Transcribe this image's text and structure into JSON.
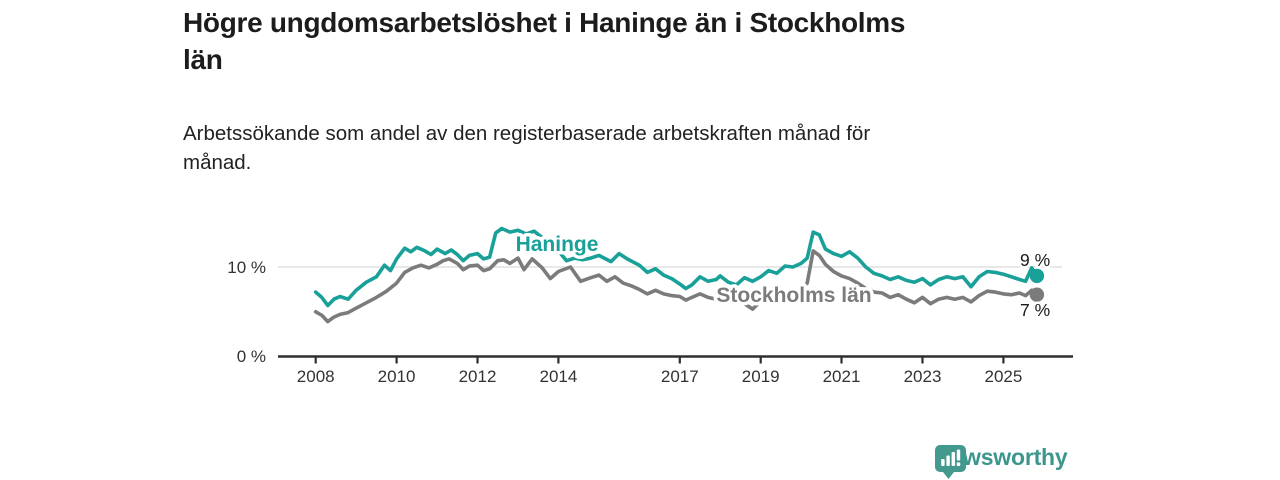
{
  "header": {
    "title_lines": [
      "Högre ungdomsarbetslöshet i Haninge än i Stockholms",
      "län"
    ],
    "subtitle_lines": [
      "Arbetssökande som andel av den registerbaserade arbetskraften månad för",
      "månad."
    ]
  },
  "branding": {
    "logo_text": "Newsworthy",
    "logo_color": "#44998f",
    "logo_icon": "bar-chart-speech-bubble-icon"
  },
  "chart_data": {
    "type": "line",
    "title": "Högre ungdomsarbetslöshet i Haninge än i Stockholms län",
    "subtitle": "Arbetssökande som andel av den registerbaserade arbetskraften månad för månad.",
    "unit": "%",
    "xlim": [
      2007.9,
      2026.1
    ],
    "ylim": [
      0,
      15
    ],
    "x_ticks": [
      2008,
      2010,
      2012,
      2014,
      2017,
      2019,
      2021,
      2023,
      2025
    ],
    "y_ticks": [
      {
        "value": 0,
        "label": "0 %"
      },
      {
        "value": 10,
        "label": "10 %"
      }
    ],
    "gridlines_y": [
      10
    ],
    "grid_color": "#d9d9d9",
    "axis_color": "#2e2e2e",
    "text_color": "#333333",
    "legend_position": "inline-labels",
    "series": [
      {
        "name": "Haninge",
        "color": "#19a099",
        "end_label": "9 %",
        "end_value": 9,
        "points": [
          [
            2008.0,
            7.2
          ],
          [
            2008.15,
            6.6
          ],
          [
            2008.3,
            5.7
          ],
          [
            2008.45,
            6.4
          ],
          [
            2008.6,
            6.7
          ],
          [
            2008.8,
            6.4
          ],
          [
            2009.0,
            7.4
          ],
          [
            2009.25,
            8.3
          ],
          [
            2009.5,
            8.9
          ],
          [
            2009.7,
            10.2
          ],
          [
            2009.85,
            9.6
          ],
          [
            2010.0,
            10.9
          ],
          [
            2010.2,
            12.1
          ],
          [
            2010.35,
            11.7
          ],
          [
            2010.5,
            12.2
          ],
          [
            2010.7,
            11.8
          ],
          [
            2010.85,
            11.4
          ],
          [
            2011.0,
            12.0
          ],
          [
            2011.2,
            11.5
          ],
          [
            2011.35,
            11.9
          ],
          [
            2011.5,
            11.4
          ],
          [
            2011.65,
            10.7
          ],
          [
            2011.8,
            11.3
          ],
          [
            2012.0,
            11.5
          ],
          [
            2012.15,
            10.9
          ],
          [
            2012.3,
            11.1
          ],
          [
            2012.45,
            13.8
          ],
          [
            2012.6,
            14.3
          ],
          [
            2012.8,
            13.9
          ],
          [
            2013.0,
            14.1
          ],
          [
            2013.2,
            13.7
          ],
          [
            2013.4,
            14.0
          ],
          [
            2013.6,
            13.3
          ],
          [
            2013.8,
            12.4
          ],
          [
            2014.0,
            11.8
          ],
          [
            2014.2,
            10.7
          ],
          [
            2014.4,
            11.0
          ],
          [
            2014.6,
            10.8
          ],
          [
            2014.8,
            11.0
          ],
          [
            2015.0,
            11.3
          ],
          [
            2015.3,
            10.6
          ],
          [
            2015.5,
            11.5
          ],
          [
            2015.7,
            10.9
          ],
          [
            2016.0,
            10.2
          ],
          [
            2016.2,
            9.4
          ],
          [
            2016.4,
            9.8
          ],
          [
            2016.6,
            9.1
          ],
          [
            2016.8,
            8.7
          ],
          [
            2017.0,
            8.1
          ],
          [
            2017.15,
            7.6
          ],
          [
            2017.3,
            8.0
          ],
          [
            2017.5,
            8.9
          ],
          [
            2017.7,
            8.4
          ],
          [
            2017.9,
            8.6
          ],
          [
            2018.0,
            9.0
          ],
          [
            2018.2,
            8.3
          ],
          [
            2018.4,
            8.0
          ],
          [
            2018.6,
            8.8
          ],
          [
            2018.8,
            8.4
          ],
          [
            2019.0,
            8.9
          ],
          [
            2019.2,
            9.6
          ],
          [
            2019.4,
            9.3
          ],
          [
            2019.6,
            10.1
          ],
          [
            2019.8,
            10.0
          ],
          [
            2020.0,
            10.4
          ],
          [
            2020.15,
            11.0
          ],
          [
            2020.3,
            13.9
          ],
          [
            2020.45,
            13.6
          ],
          [
            2020.6,
            12.0
          ],
          [
            2020.8,
            11.5
          ],
          [
            2021.0,
            11.2
          ],
          [
            2021.2,
            11.7
          ],
          [
            2021.4,
            11.0
          ],
          [
            2021.6,
            10.0
          ],
          [
            2021.8,
            9.3
          ],
          [
            2022.0,
            9.0
          ],
          [
            2022.2,
            8.6
          ],
          [
            2022.4,
            8.9
          ],
          [
            2022.6,
            8.5
          ],
          [
            2022.8,
            8.3
          ],
          [
            2023.0,
            8.7
          ],
          [
            2023.2,
            8.0
          ],
          [
            2023.4,
            8.6
          ],
          [
            2023.6,
            8.9
          ],
          [
            2023.8,
            8.7
          ],
          [
            2024.0,
            8.9
          ],
          [
            2024.2,
            7.8
          ],
          [
            2024.4,
            8.9
          ],
          [
            2024.6,
            9.5
          ],
          [
            2024.8,
            9.4
          ],
          [
            2025.0,
            9.2
          ],
          [
            2025.2,
            8.9
          ],
          [
            2025.4,
            8.6
          ],
          [
            2025.55,
            8.4
          ],
          [
            2025.7,
            9.9
          ],
          [
            2025.83,
            9.0
          ]
        ]
      },
      {
        "name": "Stockholms län",
        "color": "#7b7b7b",
        "end_label": "7 %",
        "end_value": 7,
        "points": [
          [
            2008.0,
            5.0
          ],
          [
            2008.15,
            4.6
          ],
          [
            2008.3,
            3.9
          ],
          [
            2008.45,
            4.4
          ],
          [
            2008.6,
            4.7
          ],
          [
            2008.8,
            4.9
          ],
          [
            2009.0,
            5.4
          ],
          [
            2009.25,
            6.0
          ],
          [
            2009.5,
            6.6
          ],
          [
            2009.75,
            7.3
          ],
          [
            2010.0,
            8.2
          ],
          [
            2010.2,
            9.4
          ],
          [
            2010.4,
            9.9
          ],
          [
            2010.6,
            10.2
          ],
          [
            2010.8,
            9.9
          ],
          [
            2011.0,
            10.3
          ],
          [
            2011.15,
            10.7
          ],
          [
            2011.3,
            10.9
          ],
          [
            2011.5,
            10.4
          ],
          [
            2011.65,
            9.7
          ],
          [
            2011.8,
            10.1
          ],
          [
            2012.0,
            10.2
          ],
          [
            2012.15,
            9.6
          ],
          [
            2012.3,
            9.8
          ],
          [
            2012.5,
            10.7
          ],
          [
            2012.65,
            10.8
          ],
          [
            2012.8,
            10.4
          ],
          [
            2013.0,
            11.0
          ],
          [
            2013.15,
            9.7
          ],
          [
            2013.35,
            10.9
          ],
          [
            2013.6,
            9.9
          ],
          [
            2013.8,
            8.7
          ],
          [
            2014.0,
            9.5
          ],
          [
            2014.3,
            10.0
          ],
          [
            2014.55,
            8.4
          ],
          [
            2014.8,
            8.8
          ],
          [
            2015.0,
            9.1
          ],
          [
            2015.2,
            8.4
          ],
          [
            2015.4,
            8.9
          ],
          [
            2015.6,
            8.2
          ],
          [
            2015.8,
            7.9
          ],
          [
            2016.0,
            7.5
          ],
          [
            2016.2,
            7.0
          ],
          [
            2016.4,
            7.4
          ],
          [
            2016.6,
            7.0
          ],
          [
            2016.8,
            6.8
          ],
          [
            2017.0,
            6.7
          ],
          [
            2017.15,
            6.3
          ],
          [
            2017.3,
            6.6
          ],
          [
            2017.5,
            7.0
          ],
          [
            2017.7,
            6.6
          ],
          [
            2017.9,
            6.4
          ],
          [
            2018.0,
            6.6
          ],
          [
            2018.2,
            6.1
          ],
          [
            2018.4,
            6.4
          ],
          [
            2018.6,
            5.9
          ],
          [
            2018.8,
            5.3
          ],
          [
            2019.0,
            6.2
          ],
          [
            2019.2,
            6.6
          ],
          [
            2019.4,
            6.3
          ],
          [
            2019.6,
            7.1
          ],
          [
            2019.8,
            7.0
          ],
          [
            2020.0,
            7.6
          ],
          [
            2020.15,
            8.2
          ],
          [
            2020.3,
            11.8
          ],
          [
            2020.45,
            11.3
          ],
          [
            2020.6,
            10.3
          ],
          [
            2020.8,
            9.5
          ],
          [
            2021.0,
            9.0
          ],
          [
            2021.2,
            8.7
          ],
          [
            2021.4,
            8.2
          ],
          [
            2021.6,
            7.6
          ],
          [
            2021.8,
            7.2
          ],
          [
            2022.0,
            7.1
          ],
          [
            2022.2,
            6.6
          ],
          [
            2022.4,
            6.9
          ],
          [
            2022.6,
            6.4
          ],
          [
            2022.8,
            6.0
          ],
          [
            2023.0,
            6.6
          ],
          [
            2023.2,
            5.9
          ],
          [
            2023.4,
            6.4
          ],
          [
            2023.6,
            6.6
          ],
          [
            2023.8,
            6.4
          ],
          [
            2024.0,
            6.6
          ],
          [
            2024.2,
            6.1
          ],
          [
            2024.4,
            6.8
          ],
          [
            2024.6,
            7.3
          ],
          [
            2024.8,
            7.2
          ],
          [
            2025.0,
            7.0
          ],
          [
            2025.2,
            6.9
          ],
          [
            2025.4,
            7.1
          ],
          [
            2025.55,
            6.8
          ],
          [
            2025.7,
            7.4
          ],
          [
            2025.83,
            6.9
          ]
        ]
      }
    ]
  }
}
